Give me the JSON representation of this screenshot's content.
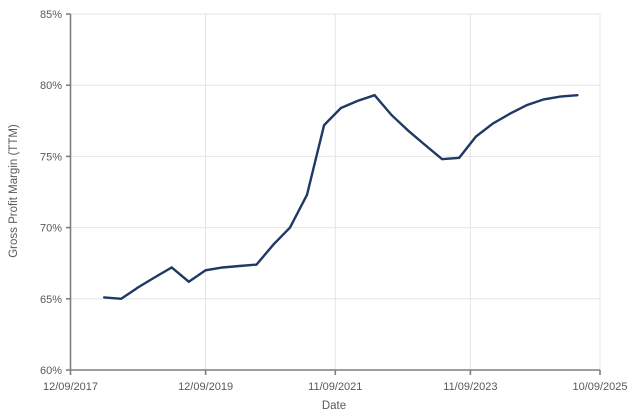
{
  "chart_data": {
    "type": "line",
    "title": "",
    "xlabel": "Date",
    "ylabel": "Gross Profit Margin (TTM)",
    "grid": true,
    "legend_position": "none",
    "x_axis": {
      "min": "2017-12-09",
      "max": "2025-10-09",
      "ticks": [
        {
          "label": "12/09/2017",
          "date": "2017-12-09"
        },
        {
          "label": "12/09/2019",
          "date": "2019-12-09"
        },
        {
          "label": "11/09/2021",
          "date": "2021-11-09"
        },
        {
          "label": "11/09/2023",
          "date": "2023-11-09"
        },
        {
          "label": "10/09/2025",
          "date": "2025-10-09"
        }
      ]
    },
    "y_axis": {
      "min": 60,
      "max": 85,
      "tick_step": 5,
      "unit": "%",
      "tick_labels": [
        "60%",
        "65%",
        "70%",
        "75%",
        "80%",
        "85%"
      ]
    },
    "series": [
      {
        "name": "Gross Profit Margin (TTM)",
        "color": "#1f3864",
        "points": [
          {
            "date": "2018-06-09",
            "value": 65.1
          },
          {
            "date": "2018-09-09",
            "value": 65.0
          },
          {
            "date": "2018-12-09",
            "value": 65.8
          },
          {
            "date": "2019-03-09",
            "value": 66.5
          },
          {
            "date": "2019-06-09",
            "value": 67.2
          },
          {
            "date": "2019-09-09",
            "value": 66.2
          },
          {
            "date": "2019-12-09",
            "value": 67.0
          },
          {
            "date": "2020-03-09",
            "value": 67.2
          },
          {
            "date": "2020-06-09",
            "value": 67.3
          },
          {
            "date": "2020-09-09",
            "value": 67.4
          },
          {
            "date": "2020-12-09",
            "value": 68.8
          },
          {
            "date": "2021-03-09",
            "value": 70.0
          },
          {
            "date": "2021-06-09",
            "value": 72.3
          },
          {
            "date": "2021-09-09",
            "value": 77.2
          },
          {
            "date": "2021-12-09",
            "value": 78.4
          },
          {
            "date": "2022-03-09",
            "value": 78.9
          },
          {
            "date": "2022-06-09",
            "value": 79.3
          },
          {
            "date": "2022-09-09",
            "value": 77.9
          },
          {
            "date": "2022-12-09",
            "value": 76.8
          },
          {
            "date": "2023-03-09",
            "value": 75.8
          },
          {
            "date": "2023-06-09",
            "value": 74.8
          },
          {
            "date": "2023-09-09",
            "value": 74.9
          },
          {
            "date": "2023-12-09",
            "value": 76.4
          },
          {
            "date": "2024-03-09",
            "value": 77.3
          },
          {
            "date": "2024-06-09",
            "value": 78.0
          },
          {
            "date": "2024-09-09",
            "value": 78.6
          },
          {
            "date": "2024-12-09",
            "value": 79.0
          },
          {
            "date": "2025-03-09",
            "value": 79.2
          },
          {
            "date": "2025-06-09",
            "value": 79.3
          }
        ]
      }
    ]
  },
  "style": {
    "background": "#ffffff",
    "line_color": "#1f3864",
    "grid_color": "#e5e5e5",
    "axis_color": "#7f7f7f",
    "label_color": "#595959"
  }
}
